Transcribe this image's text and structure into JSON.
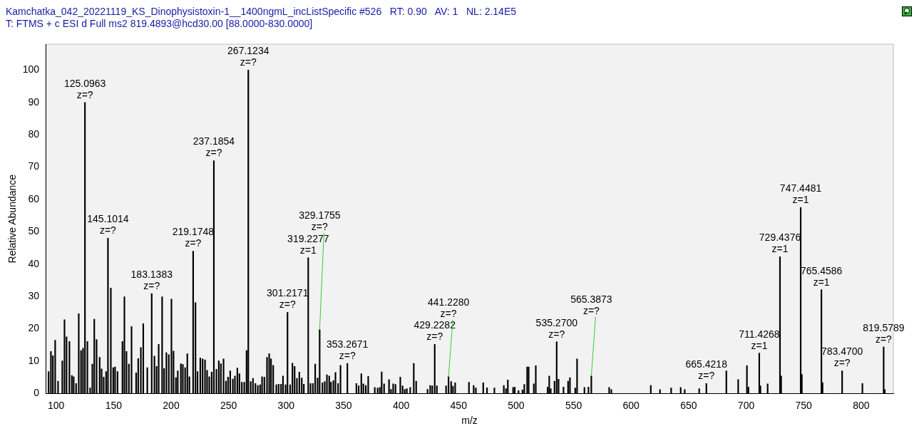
{
  "chart_data": {
    "type": "bar",
    "title": "Kamchatka_042_20221119_KS_Dinophysistoxin-1__1400ngmL_incListSpecific #526   RT: 0.90   AV: 1   NL: 2.14E5",
    "subtitle": "T: FTMS + c ESI d Full ms2 819.4893@hcd30.00 [88.0000-830.0000]",
    "xlabel": "m/z",
    "ylabel": "Relative Abundance",
    "x": [
      93.5,
      95.5,
      97.2,
      99.2,
      101.7,
      105.4,
      107.3,
      109.1,
      111.6,
      113.7,
      115.3,
      117.4,
      119.7,
      121.7,
      123.4,
      125.0963,
      127.2,
      129.6,
      131.5,
      133.2,
      135.2,
      137.9,
      139.6,
      141.4,
      143.5,
      145.1014,
      147.6,
      149.7,
      151.3,
      153.4,
      157.7,
      159.4,
      161.2,
      163.3,
      165.6,
      169.6,
      171.4,
      173.7,
      175.8,
      179.3,
      183.1383,
      185.5,
      187.4,
      189.2,
      192.2,
      193.9,
      195.9,
      198.0,
      200.3,
      202.1,
      204.2,
      205.8,
      208.5,
      210.2,
      212.2,
      214.1,
      215.9,
      219.1748,
      221.2,
      223.0,
      225.4,
      227.4,
      229.5,
      231.3,
      233.2,
      235.3,
      237.1854,
      239.4,
      241.5,
      243.3,
      245.6,
      247.7,
      249.5,
      251.4,
      253.7,
      255.5,
      257.6,
      259.4,
      261.5,
      263.6,
      265.6,
      267.1234,
      269.2,
      271.2,
      273.3,
      275.4,
      277.4,
      279.1,
      281.1,
      283.4,
      285.3,
      286.9,
      288.8,
      291.5,
      293.5,
      295.6,
      297.3,
      299.5,
      301.2171,
      303.5,
      305.5,
      307.4,
      309.4,
      311.5,
      313.6,
      315.4,
      319.2277,
      321.2,
      323.3,
      325.3,
      327.4,
      329.1755,
      331.6,
      333.6,
      335.5,
      337.5,
      339.0,
      341.1,
      342.9,
      345.2,
      347.3,
      353.2671,
      361.1,
      363.1,
      365.4,
      367.2,
      369.3,
      371.4,
      377.1,
      379.6,
      381.5,
      383.1,
      385.2,
      389.5,
      391.2,
      393.1,
      395.1,
      399.3,
      401.3,
      403.2,
      405.0,
      407.9,
      411.0,
      413.1,
      423.0,
      425.3,
      427.1,
      429.2282,
      431.1,
      439.1,
      441.228,
      443.5,
      445.1,
      447.0,
      459.0,
      463.1,
      465.0,
      471.4,
      474.7,
      481.1,
      489.3,
      491.2,
      492.8,
      497.4,
      498.8,
      502.1,
      505.5,
      507.1,
      509.6,
      510.9,
      515.4,
      517.1,
      527.4,
      528.8,
      530.1,
      533.4,
      535.27,
      536.9,
      541.2,
      545.2,
      546.8,
      551.4,
      553.0,
      559.4,
      562.9,
      565.3873,
      580.9,
      582.8,
      617.1,
      625.1,
      634.8,
      643.1,
      646.6,
      659.2,
      665.4218,
      682.8,
      693.1,
      700.7,
      702.0,
      711.4268,
      712.43,
      718.7,
      729.4376,
      730.44,
      747.4481,
      748.45,
      765.4586,
      766.46,
      783.47,
      801.1,
      819.5789,
      820.58
    ],
    "values": [
      6.8,
      13.0,
      11.7,
      16.5,
      3.8,
      10.1,
      22.8,
      17.5,
      16.1,
      5.6,
      5.2,
      3.1,
      24.7,
      13.3,
      14.0,
      90,
      16.1,
      1.7,
      9.1,
      23.0,
      16.7,
      11.2,
      7.6,
      5.1,
      6.8,
      48,
      32.6,
      8.0,
      8.2,
      6.8,
      16.1,
      29.9,
      13.0,
      9.1,
      20.7,
      6.4,
      10.8,
      14.2,
      21.6,
      8.0,
      30.9,
      11.6,
      8.4,
      15.2,
      29.9,
      7.7,
      12.6,
      12.0,
      29.2,
      13.1,
      4.9,
      7.0,
      9.2,
      9.0,
      8.0,
      12.3,
      5.2,
      44,
      28.1,
      6.8,
      11.0,
      10.7,
      10.4,
      7.2,
      5.2,
      6.6,
      72,
      7.5,
      10.1,
      9.2,
      10.7,
      3.8,
      5.1,
      7.0,
      4.5,
      5.4,
      7.9,
      6.1,
      3.5,
      3.5,
      13.3,
      100,
      3.7,
      4.7,
      3.1,
      2.5,
      2.7,
      5.2,
      5.1,
      11.2,
      12.3,
      10.7,
      8.7,
      2.7,
      2.9,
      2.9,
      5.4,
      2.7,
      25.1,
      2.7,
      9.4,
      8.4,
      4.7,
      6.6,
      4.8,
      2.9,
      42,
      3.1,
      3.1,
      9.1,
      4.8,
      19.7,
      3.3,
      3.7,
      5.8,
      5.4,
      3.5,
      4.0,
      6.5,
      3.1,
      8.7,
      9.3,
      3.1,
      2.4,
      6.1,
      3.0,
      2.5,
      5.3,
      1.9,
      1.7,
      1.9,
      6.7,
      3.0,
      4.3,
      1.3,
      3.0,
      2.8,
      5.1,
      2.4,
      1.3,
      1.5,
      1.9,
      9.3,
      3.8,
      1.3,
      2.5,
      2.4,
      15.2,
      2.4,
      2.4,
      5.2,
      3.7,
      2.3,
      3.3,
      3.5,
      2.5,
      1.7,
      3.3,
      1.8,
      1.7,
      2.5,
      1.5,
      4.2,
      1.9,
      2.0,
      0.9,
      1.1,
      2.8,
      8.2,
      8.2,
      3.0,
      8.6,
      2.0,
      5.4,
      1.5,
      3.8,
      16.0,
      4.4,
      2.0,
      3.8,
      4.9,
      1.7,
      10.7,
      1.9,
      2.0,
      5.4,
      1.9,
      1.2,
      2.5,
      1.2,
      1.7,
      1.9,
      1.2,
      1.5,
      3.1,
      7.0,
      4.3,
      8.6,
      2.0,
      12.5,
      2.4,
      3.0,
      42.3,
      5.4,
      57.5,
      5.9,
      32.1,
      3.4,
      7.0,
      3.1,
      14.4,
      1.2
    ],
    "color": "#000000",
    "xlim": [
      91,
      828
    ],
    "xticks": [
      100,
      150,
      200,
      250,
      300,
      350,
      400,
      450,
      500,
      550,
      600,
      650,
      700,
      750,
      800
    ],
    "ylim": [
      0,
      108
    ],
    "yticks": [
      0,
      10,
      20,
      30,
      40,
      50,
      60,
      70,
      80,
      90,
      100
    ],
    "annotations": [
      {
        "text": "125.0963\nz=?",
        "x": 125.0963,
        "y": 90
      },
      {
        "text": "145.1014\nz=?",
        "x": 145.1014,
        "y": 48
      },
      {
        "text": "183.1383\nz=?",
        "x": 183.1383,
        "y": 30.9
      },
      {
        "text": "219.1748\nz=?",
        "x": 219.1748,
        "y": 44
      },
      {
        "text": "237.1854\nz=?",
        "x": 237.1854,
        "y": 72
      },
      {
        "text": "267.1234\nz=?",
        "x": 267.1234,
        "y": 100
      },
      {
        "text": "301.2171\nz=?",
        "x": 301.2171,
        "y": 25.1
      },
      {
        "text": "319.2277\nz=1",
        "x": 319.2277,
        "y": 42
      },
      {
        "text": "329.1755\nz=?",
        "x": 329.1755,
        "y": 19.7
      },
      {
        "text": "353.2671\nz=?",
        "x": 353.2671,
        "y": 9.3
      },
      {
        "text": "429.2282\nz=?",
        "x": 429.2282,
        "y": 15.2
      },
      {
        "text": "441.2280\nz=?",
        "x": 441.228,
        "y": 5.2
      },
      {
        "text": "535.2700\nz=?",
        "x": 535.27,
        "y": 16.0
      },
      {
        "text": "565.3873\nz=?",
        "x": 565.3873,
        "y": 5.4
      },
      {
        "text": "665.4218\nz=?",
        "x": 665.4218,
        "y": 3.1
      },
      {
        "text": "711.4268\nz=1",
        "x": 711.4268,
        "y": 12.5
      },
      {
        "text": "729.4376\nz=1",
        "x": 729.4376,
        "y": 42.3
      },
      {
        "text": "747.4481\nz=1",
        "x": 747.4481,
        "y": 57.5
      },
      {
        "text": "765.4586\nz=1",
        "x": 765.4586,
        "y": 32.1
      },
      {
        "text": "783.4700\nz=?",
        "x": 783.47,
        "y": 7.0
      },
      {
        "text": "819.5789\nz=?",
        "x": 819.5789,
        "y": 14.4
      }
    ]
  }
}
